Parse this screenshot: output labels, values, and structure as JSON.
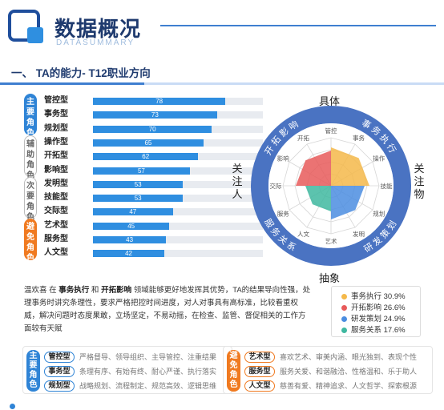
{
  "header": {
    "title": "数据概况",
    "subtitle": "DATASUMMARY"
  },
  "section": {
    "title": "一、 TA的能力- T12职业方向"
  },
  "groups": [
    {
      "label": "主要角色",
      "color": "#2f84d6"
    },
    {
      "label": "辅助角色",
      "color": "#ffffff"
    },
    {
      "label": "次要角色",
      "color": "#ffffff"
    },
    {
      "label": "避免角色",
      "color": "#f07a20"
    }
  ],
  "bars": [
    {
      "name": "管控型",
      "value": 78
    },
    {
      "name": "事务型",
      "value": 73
    },
    {
      "name": "规划型",
      "value": 70
    },
    {
      "name": "操作型",
      "value": 65
    },
    {
      "name": "开拓型",
      "value": 62
    },
    {
      "name": "影响型",
      "value": 57
    },
    {
      "name": "发明型",
      "value": 53
    },
    {
      "name": "技能型",
      "value": 53
    },
    {
      "name": "交际型",
      "value": 47
    },
    {
      "name": "艺术型",
      "value": 45
    },
    {
      "name": "服务型",
      "value": 43
    },
    {
      "name": "人文型",
      "value": 42
    }
  ],
  "radar": {
    "top": "具体",
    "bottom": "抽象",
    "left": "关注人",
    "right": "关注物",
    "ring_labels": [
      "事务执行",
      "开拓影响",
      "研发策划",
      "服务关系"
    ],
    "spokes": [
      "管控",
      "事务",
      "操作",
      "技能",
      "规划",
      "发明",
      "艺术",
      "人文",
      "服务",
      "交际",
      "影响",
      "开拓"
    ],
    "quadrant_colors": {
      "事务执行": "#f5b94a",
      "开拓影响": "#e85a5a",
      "研发策划": "#4b8de0",
      "服务关系": "#3fb8a0"
    }
  },
  "description": {
    "text1": "温欢喜 在 ",
    "bold1": "事务执行",
    "text2": " 和 ",
    "bold2": "开拓影响",
    "text3": " 领域能够更好地发挥其优势，TA的结果导向性强，处理事务时讲究条理性，要求严格把控时间进度，对人对事具有高标准，比较看重权威，解决问题时态度果敢，立场坚定，不易动摇，在检查、监管、督促相关的工作方面较有天赋"
  },
  "legend": [
    {
      "label": "事务执行 30.9%",
      "color": "#f5b94a"
    },
    {
      "label": "开拓影响 26.6%",
      "color": "#e85a5a"
    },
    {
      "label": "研发策划 24.9%",
      "color": "#4b8de0"
    },
    {
      "label": "服务关系 17.6%",
      "color": "#3fb8a0"
    }
  ],
  "main_roles": {
    "label": "主要角色",
    "rows": [
      {
        "name": "管控型",
        "text": "严格督导、领导组织、主导管控、注重结果"
      },
      {
        "name": "事务型",
        "text": "条理有序、有始有终、耐心严谨、执行落实"
      },
      {
        "name": "规划型",
        "text": "战略规划、流程制定、规范高效、逻辑思维"
      }
    ]
  },
  "avoid_roles": {
    "label": "避免角色",
    "rows": [
      {
        "name": "艺术型",
        "text": "喜欢艺术、审美内涵、眼光独到、表现个性"
      },
      {
        "name": "服务型",
        "text": "服务关爱、和谐融洽、性格温和、乐于助人"
      },
      {
        "name": "人文型",
        "text": "慈善有爱、精神追求、人文哲学、探索根源"
      }
    ]
  }
}
